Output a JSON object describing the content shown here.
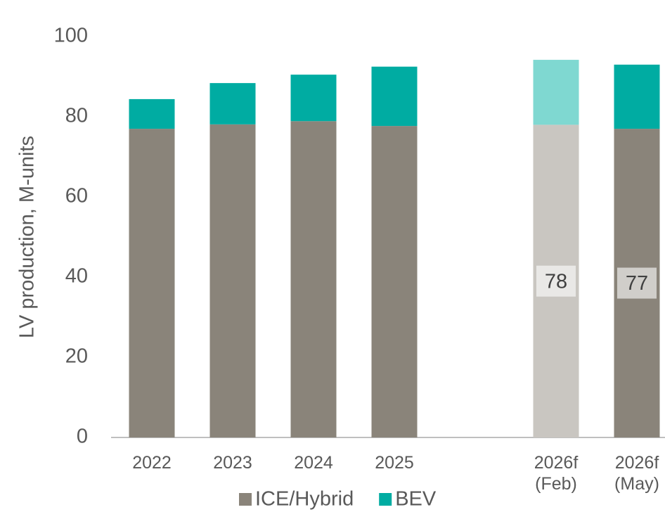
{
  "chart_data": {
    "type": "stacked_bar",
    "y_label": "LV production, M-units",
    "categories": [
      "2022",
      "2023",
      "2024",
      "2025",
      null,
      "2026f\n(Feb)",
      "2026f\n(May)"
    ],
    "series": [
      {
        "name": "ICE/Hybrid",
        "color": "#8a847a",
        "colors": [
          "#8a847a",
          "#8a847a",
          "#8a847a",
          "#8a847a",
          null,
          "#c9c6c1",
          "#8a847a"
        ],
        "values": [
          77,
          78.1,
          78.9,
          77.7,
          null,
          78,
          77
        ],
        "value_labels": [
          null,
          null,
          null,
          null,
          null,
          "78",
          "77"
        ]
      },
      {
        "name": "BEV",
        "color": "#00aca2",
        "colors": [
          "#00aca2",
          "#00aca2",
          "#00aca2",
          "#00aca2",
          null,
          "#7fd8d1",
          "#00aca2"
        ],
        "values": [
          7.4,
          10.3,
          11.6,
          14.8,
          null,
          16.2,
          16
        ]
      }
    ],
    "ylim": [
      0,
      100
    ],
    "yticks": [
      0,
      20,
      40,
      60,
      80,
      100
    ],
    "grid": false,
    "legend": "bottom"
  }
}
